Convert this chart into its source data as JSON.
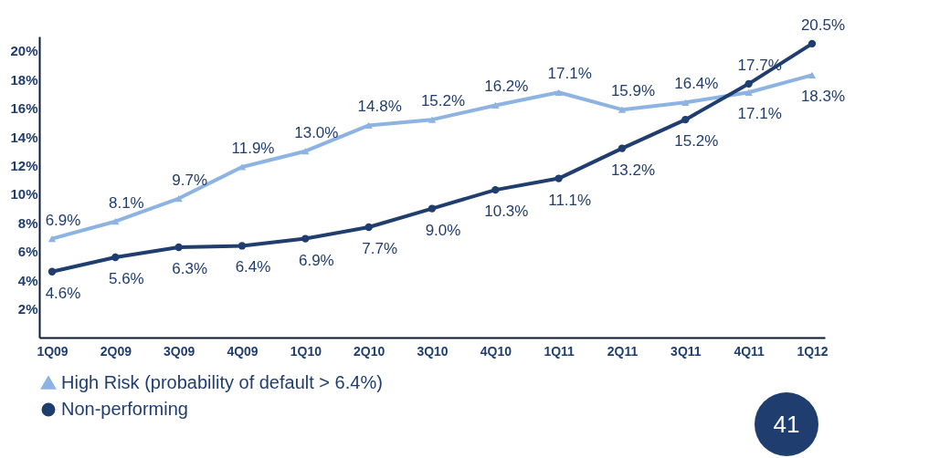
{
  "chart_data": {
    "type": "line",
    "categories": [
      "1Q09",
      "2Q09",
      "3Q09",
      "4Q09",
      "1Q10",
      "2Q10",
      "3Q10",
      "4Q10",
      "1Q11",
      "2Q11",
      "3Q11",
      "4Q11",
      "1Q12"
    ],
    "series": [
      {
        "name": "High Risk (probability of default > 6.4%)",
        "color": "#8db3e2",
        "marker": "triangle",
        "values": [
          6.9,
          8.1,
          9.7,
          11.9,
          13.0,
          14.8,
          15.2,
          16.2,
          17.1,
          15.9,
          16.4,
          17.1,
          18.3
        ],
        "value_labels": [
          "6.9%",
          "8.1%",
          "9.7%",
          "11.9%",
          "13.0%",
          "14.8%",
          "15.2%",
          "16.2%",
          "17.1%",
          "15.9%",
          "16.4%",
          "17.1%",
          "18.3%"
        ]
      },
      {
        "name": "Non-performing",
        "color": "#1f3d6e",
        "marker": "circle",
        "values": [
          4.6,
          5.6,
          6.3,
          6.4,
          6.9,
          7.7,
          9.0,
          10.3,
          11.1,
          13.2,
          15.2,
          17.7,
          20.5
        ],
        "value_labels": [
          "4.6%",
          "5.6%",
          "6.3%",
          "6.4%",
          "6.9%",
          "7.7%",
          "9.0%",
          "10.3%",
          "11.1%",
          "13.2%",
          "15.2%",
          "17.7%",
          "20.5%"
        ]
      }
    ],
    "ylim": [
      0,
      21
    ],
    "yticks": [
      {
        "value": 2,
        "label": "2%"
      },
      {
        "value": 4,
        "label": "4%"
      },
      {
        "value": 6,
        "label": "6%"
      },
      {
        "value": 8,
        "label": "8%"
      },
      {
        "value": 10,
        "label": "10%"
      },
      {
        "value": 12,
        "label": "12%"
      },
      {
        "value": 14,
        "label": "14%"
      },
      {
        "value": 16,
        "label": "16%"
      },
      {
        "value": 18,
        "label": "18%"
      },
      {
        "value": 20,
        "label": "20%"
      }
    ],
    "grid": false,
    "legend": "bottom",
    "line_style": "solid",
    "annotations": [
      "41"
    ]
  }
}
